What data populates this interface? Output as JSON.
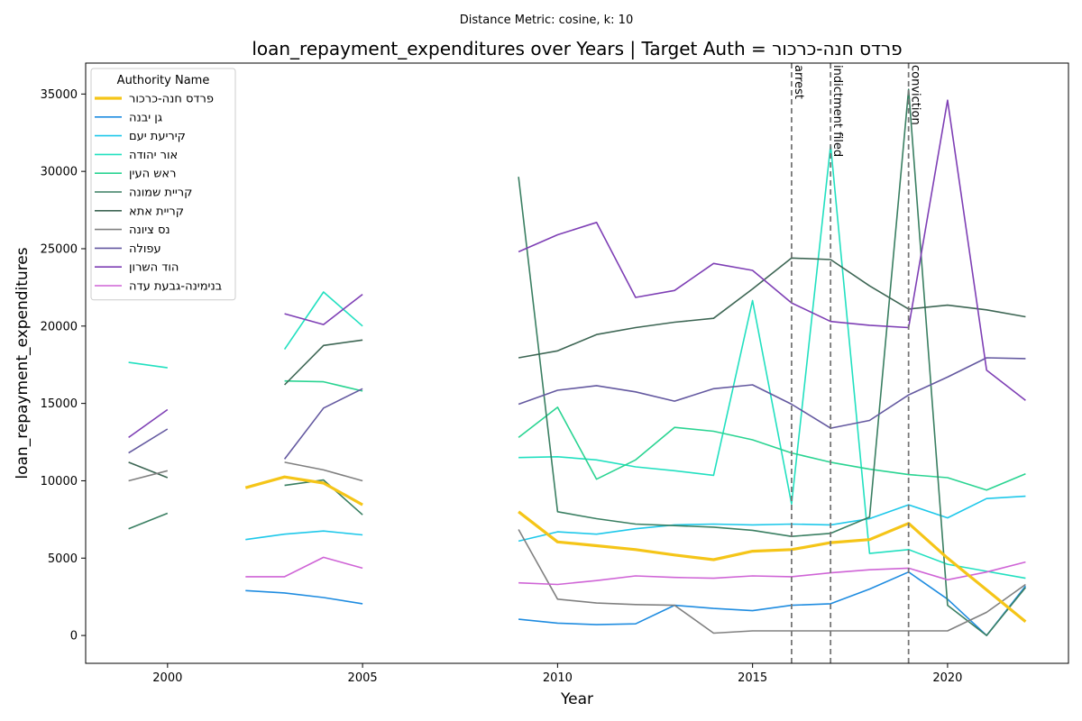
{
  "chart_data": {
    "type": "line",
    "suptitle": "Distance Metric: cosine, k: 10",
    "title": "loan_repayment_expenditures over Years | Target Auth = פרדס חנה-כרכור",
    "xlabel": "Year",
    "ylabel": "loan_repayment_expenditures",
    "xlim": [
      1997.9,
      2023.1
    ],
    "ylim": [
      -1800,
      37000
    ],
    "x_ticks": [
      2000,
      2005,
      2010,
      2015,
      2020
    ],
    "y_ticks": [
      0,
      5000,
      10000,
      15000,
      20000,
      25000,
      30000,
      35000
    ],
    "grid": false,
    "legend": {
      "title": "Authority Name",
      "placement": "top-left"
    },
    "events": [
      {
        "x": 2016,
        "label": "arrest"
      },
      {
        "x": 2017,
        "label": "indictment filed"
      },
      {
        "x": 2019,
        "label": "conviction"
      }
    ],
    "series": [
      {
        "name": "פרדס חנה-כרכור",
        "color": "#f5c518",
        "width": 3.2,
        "target": true,
        "points": [
          [
            2002,
            9550
          ],
          [
            2003,
            10250
          ],
          [
            2004,
            9850
          ],
          [
            2005,
            8450
          ],
          [
            2009,
            8000
          ],
          [
            2010,
            6050
          ],
          [
            2011,
            5800
          ],
          [
            2012,
            5550
          ],
          [
            2013,
            5200
          ],
          [
            2014,
            4900
          ],
          [
            2015,
            5450
          ],
          [
            2016,
            5550
          ],
          [
            2017,
            6000
          ],
          [
            2018,
            6200
          ],
          [
            2019,
            7250
          ],
          [
            2020,
            5000
          ],
          [
            2021,
            2950
          ],
          [
            2022,
            900
          ]
        ]
      },
      {
        "name": "גן יבנה",
        "color": "#1f8ce0",
        "width": 1.6,
        "points": [
          [
            2002,
            2900
          ],
          [
            2003,
            2750
          ],
          [
            2004,
            2450
          ],
          [
            2005,
            2050
          ],
          [
            2009,
            1050
          ],
          [
            2010,
            800
          ],
          [
            2011,
            700
          ],
          [
            2012,
            750
          ],
          [
            2013,
            1950
          ],
          [
            2014,
            1750
          ],
          [
            2015,
            1600
          ],
          [
            2016,
            1950
          ],
          [
            2017,
            2050
          ],
          [
            2018,
            3000
          ],
          [
            2019,
            4100
          ],
          [
            2020,
            2350
          ],
          [
            2021,
            0
          ],
          [
            2022,
            3200
          ]
        ]
      },
      {
        "name": "קיריעת יעם",
        "color": "#1ec8ea",
        "width": 1.6,
        "points": [
          [
            2002,
            6200
          ],
          [
            2003,
            6550
          ],
          [
            2004,
            6750
          ],
          [
            2005,
            6500
          ],
          [
            2009,
            6100
          ],
          [
            2010,
            6700
          ],
          [
            2011,
            6550
          ],
          [
            2012,
            6900
          ],
          [
            2013,
            7150
          ],
          [
            2014,
            7200
          ],
          [
            2015,
            7150
          ],
          [
            2016,
            7200
          ],
          [
            2017,
            7150
          ],
          [
            2018,
            7550
          ],
          [
            2019,
            8450
          ],
          [
            2020,
            7600
          ],
          [
            2021,
            8850
          ],
          [
            2022,
            9000
          ]
        ]
      },
      {
        "name": "אור יהודה",
        "color": "#22e0c0",
        "width": 1.6,
        "points": [
          [
            1999,
            17650
          ],
          [
            2000,
            17300
          ],
          [
            2003,
            18500
          ],
          [
            2004,
            22200
          ],
          [
            2005,
            20000
          ],
          [
            2009,
            11500
          ],
          [
            2010,
            11550
          ],
          [
            2011,
            11350
          ],
          [
            2012,
            10900
          ],
          [
            2013,
            10650
          ],
          [
            2014,
            10350
          ],
          [
            2015,
            21650
          ],
          [
            2016,
            8500
          ],
          [
            2017,
            31700
          ],
          [
            2018,
            5300
          ],
          [
            2019,
            5550
          ],
          [
            2020,
            4600
          ],
          [
            2021,
            4150
          ],
          [
            2022,
            3700
          ]
        ]
      },
      {
        "name": "ראש העין",
        "color": "#2ad492",
        "width": 1.6,
        "points": [
          [
            2003,
            16450
          ],
          [
            2004,
            16400
          ],
          [
            2005,
            15800
          ],
          [
            2009,
            12800
          ],
          [
            2010,
            14750
          ],
          [
            2011,
            10100
          ],
          [
            2012,
            11350
          ],
          [
            2013,
            13450
          ],
          [
            2014,
            13200
          ],
          [
            2015,
            12650
          ],
          [
            2016,
            11800
          ],
          [
            2017,
            11200
          ],
          [
            2018,
            10750
          ],
          [
            2019,
            10400
          ],
          [
            2020,
            10200
          ],
          [
            2021,
            9400
          ],
          [
            2022,
            10450
          ]
        ]
      },
      {
        "name": "קריית שמונה",
        "color": "#3a7f62",
        "width": 1.6,
        "points": [
          [
            1999,
            6900
          ],
          [
            2000,
            7900
          ],
          [
            2003,
            9700
          ],
          [
            2004,
            10050
          ],
          [
            2005,
            7800
          ],
          [
            2009,
            29650
          ],
          [
            2010,
            8000
          ],
          [
            2011,
            7550
          ],
          [
            2012,
            7200
          ],
          [
            2013,
            7100
          ],
          [
            2014,
            7000
          ],
          [
            2015,
            6800
          ],
          [
            2016,
            6400
          ],
          [
            2017,
            6600
          ],
          [
            2018,
            7650
          ],
          [
            2019,
            35300
          ],
          [
            2020,
            1950
          ],
          [
            2021,
            0
          ],
          [
            2022,
            3100
          ]
        ]
      },
      {
        "name": "קריית אתא",
        "color": "#3d6654",
        "width": 1.6,
        "points": [
          [
            1999,
            11200
          ],
          [
            2000,
            10200
          ],
          [
            2003,
            16200
          ],
          [
            2004,
            18750
          ],
          [
            2005,
            19100
          ],
          [
            2009,
            17950
          ],
          [
            2010,
            18400
          ],
          [
            2011,
            19450
          ],
          [
            2012,
            19900
          ],
          [
            2013,
            20250
          ],
          [
            2014,
            20500
          ],
          [
            2015,
            22400
          ],
          [
            2016,
            24400
          ],
          [
            2017,
            24300
          ],
          [
            2018,
            22600
          ],
          [
            2019,
            21100
          ],
          [
            2020,
            21350
          ],
          [
            2021,
            21050
          ],
          [
            2022,
            20600
          ]
        ]
      },
      {
        "name": "נס ציונה",
        "color": "#808080",
        "width": 1.6,
        "points": [
          [
            1999,
            10000
          ],
          [
            2000,
            10650
          ],
          [
            2003,
            11200
          ],
          [
            2004,
            10700
          ],
          [
            2005,
            10000
          ],
          [
            2009,
            6850
          ],
          [
            2010,
            2350
          ],
          [
            2011,
            2100
          ],
          [
            2012,
            2000
          ],
          [
            2013,
            1950
          ],
          [
            2014,
            150
          ],
          [
            2015,
            300
          ],
          [
            2016,
            300
          ],
          [
            2017,
            300
          ],
          [
            2018,
            300
          ],
          [
            2019,
            300
          ],
          [
            2020,
            300
          ],
          [
            2021,
            1500
          ],
          [
            2022,
            3300
          ]
        ]
      },
      {
        "name": "עפולה",
        "color": "#6459a0",
        "width": 1.6,
        "points": [
          [
            1999,
            11800
          ],
          [
            2000,
            13350
          ],
          [
            2003,
            11400
          ],
          [
            2004,
            14700
          ],
          [
            2005,
            15950
          ],
          [
            2009,
            14950
          ],
          [
            2010,
            15850
          ],
          [
            2011,
            16150
          ],
          [
            2012,
            15750
          ],
          [
            2013,
            15150
          ],
          [
            2014,
            15950
          ],
          [
            2015,
            16200
          ],
          [
            2016,
            14950
          ],
          [
            2017,
            13400
          ],
          [
            2018,
            13900
          ],
          [
            2019,
            15550
          ],
          [
            2020,
            16700
          ],
          [
            2021,
            17950
          ],
          [
            2022,
            17900
          ]
        ]
      },
      {
        "name": "הוד השרון",
        "color": "#7e3fb5",
        "width": 1.6,
        "points": [
          [
            1999,
            12800
          ],
          [
            2000,
            14600
          ],
          [
            2003,
            20800
          ],
          [
            2004,
            20100
          ],
          [
            2005,
            22050
          ],
          [
            2009,
            24800
          ],
          [
            2010,
            25900
          ],
          [
            2011,
            26700
          ],
          [
            2012,
            21850
          ],
          [
            2013,
            22300
          ],
          [
            2014,
            24050
          ],
          [
            2015,
            23600
          ],
          [
            2016,
            21500
          ],
          [
            2017,
            20300
          ],
          [
            2018,
            20050
          ],
          [
            2019,
            19900
          ],
          [
            2020,
            34600
          ],
          [
            2021,
            17150
          ],
          [
            2022,
            15200
          ]
        ]
      },
      {
        "name": "בנימינה-גבעת עדה",
        "color": "#cf64d6",
        "width": 1.6,
        "points": [
          [
            2002,
            3800
          ],
          [
            2003,
            3800
          ],
          [
            2004,
            5050
          ],
          [
            2005,
            4350
          ],
          [
            2009,
            3400
          ],
          [
            2010,
            3300
          ],
          [
            2011,
            3550
          ],
          [
            2012,
            3850
          ],
          [
            2013,
            3750
          ],
          [
            2014,
            3700
          ],
          [
            2015,
            3850
          ],
          [
            2016,
            3800
          ],
          [
            2017,
            4050
          ],
          [
            2018,
            4250
          ],
          [
            2019,
            4350
          ],
          [
            2020,
            3600
          ],
          [
            2021,
            4100
          ],
          [
            2022,
            4750
          ]
        ]
      }
    ]
  }
}
